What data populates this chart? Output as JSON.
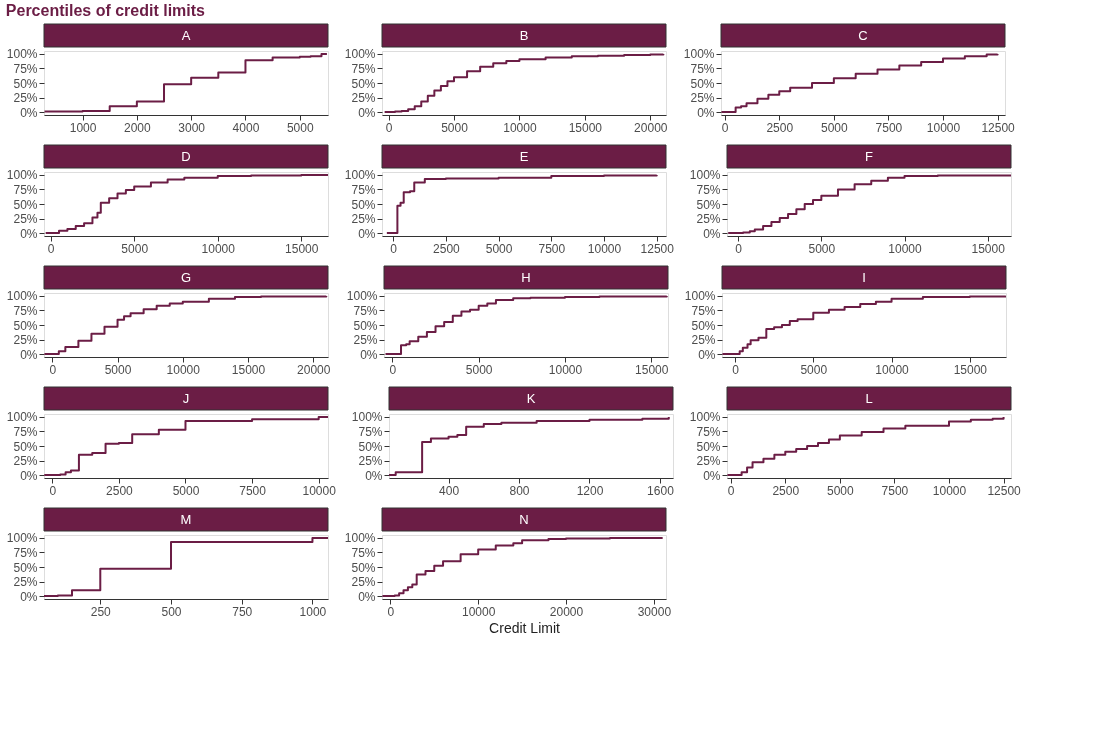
{
  "chart_data": [
    {
      "type": "step",
      "title": "A",
      "annotations": [
        "Percentiles of credit limits"
      ],
      "x": [
        300,
        1000,
        1500,
        2000,
        2500,
        3000,
        3500,
        4000,
        4500,
        5000,
        5200,
        5400,
        5500
      ],
      "series": [
        {
          "color": "#6b1d45",
          "values": [
            1,
            2,
            10,
            18,
            48,
            59,
            68,
            89,
            94,
            95,
            96,
            100,
            100
          ]
        }
      ],
      "xlim": [
        290,
        5520
      ],
      "xticks": [
        1000,
        2000,
        3000,
        4000,
        5000
      ],
      "ylim": [
        -5,
        105
      ],
      "yticks": [
        {
          "value": 0,
          "label": "0%"
        },
        {
          "value": 25,
          "label": "25%"
        },
        {
          "value": 50,
          "label": "50%"
        },
        {
          "value": 75,
          "label": "75%"
        },
        {
          "value": 100,
          "label": "100%"
        }
      ]
    },
    {
      "type": "step",
      "title": "B",
      "x": [
        -300,
        500,
        1000,
        1500,
        2000,
        2500,
        3000,
        3500,
        4000,
        4500,
        5000,
        6000,
        7000,
        8000,
        9000,
        10000,
        12000,
        14000,
        16000,
        18000,
        20000,
        21000
      ],
      "series": [
        {
          "color": "#6b1d45",
          "values": [
            0,
            1,
            2,
            5,
            10,
            18,
            28,
            37,
            45,
            53,
            60,
            70,
            78,
            84,
            88,
            91,
            94,
            96,
            97,
            98,
            99,
            100
          ]
        }
      ],
      "xlim": [
        -500,
        21200
      ],
      "xticks": [
        0,
        5000,
        10000,
        15000,
        20000
      ],
      "ylim": [
        -5,
        105
      ],
      "yticks": [
        {
          "value": 0,
          "label": "0%"
        },
        {
          "value": 25,
          "label": "25%"
        },
        {
          "value": 50,
          "label": "50%"
        },
        {
          "value": 75,
          "label": "75%"
        },
        {
          "value": 100,
          "label": "100%"
        }
      ]
    },
    {
      "type": "step",
      "title": "C",
      "x": [
        -150,
        500,
        750,
        1000,
        1500,
        2000,
        2500,
        3000,
        4000,
        5000,
        6000,
        7000,
        8000,
        9000,
        10000,
        11000,
        12000,
        12500
      ],
      "series": [
        {
          "color": "#6b1d45",
          "values": [
            0,
            8,
            10,
            15,
            23,
            30,
            36,
            42,
            50,
            58,
            66,
            73,
            80,
            86,
            92,
            96,
            99,
            100
          ]
        }
      ],
      "xlim": [
        -170,
        12840
      ],
      "xticks": [
        0,
        2500,
        5000,
        7500,
        10000,
        12500
      ],
      "ylim": [
        -5,
        105
      ],
      "yticks": [
        {
          "value": 0,
          "label": "0%"
        },
        {
          "value": 25,
          "label": "25%"
        },
        {
          "value": 50,
          "label": "50%"
        },
        {
          "value": 75,
          "label": "75%"
        },
        {
          "value": 100,
          "label": "100%"
        }
      ]
    },
    {
      "type": "step",
      "title": "D",
      "x": [
        -300,
        500,
        1000,
        1500,
        2000,
        2500,
        2800,
        3000,
        3500,
        4000,
        4500,
        5000,
        6000,
        7000,
        8000,
        10000,
        12000,
        15000,
        16600
      ],
      "series": [
        {
          "color": "#6b1d45",
          "values": [
            0,
            4,
            7,
            12,
            17,
            27,
            35,
            52,
            60,
            68,
            74,
            80,
            87,
            92,
            95,
            98,
            99,
            100,
            100
          ]
        }
      ],
      "xlim": [
        -400,
        16600
      ],
      "xticks": [
        0,
        5000,
        10000,
        15000
      ],
      "ylim": [
        -5,
        105
      ],
      "yticks": [
        {
          "value": 0,
          "label": "0%"
        },
        {
          "value": 25,
          "label": "25%"
        },
        {
          "value": 50,
          "label": "50%"
        },
        {
          "value": 75,
          "label": "75%"
        },
        {
          "value": 100,
          "label": "100%"
        }
      ]
    },
    {
      "type": "step",
      "title": "E",
      "x": [
        -300,
        200,
        350,
        500,
        800,
        1000,
        1500,
        2500,
        5000,
        7500,
        10000,
        12500
      ],
      "series": [
        {
          "color": "#6b1d45",
          "values": [
            0,
            47,
            52,
            70,
            72,
            87,
            93,
            94,
            95,
            98,
            99,
            100
          ]
        }
      ],
      "xlim": [
        -530,
        12940
      ],
      "xticks": [
        0,
        2500,
        5000,
        7500,
        10000,
        12500
      ],
      "ylim": [
        -5,
        105
      ],
      "yticks": [
        {
          "value": 0,
          "label": "0%"
        },
        {
          "value": 25,
          "label": "25%"
        },
        {
          "value": 50,
          "label": "50%"
        },
        {
          "value": 75,
          "label": "75%"
        },
        {
          "value": 100,
          "label": "100%"
        }
      ]
    },
    {
      "type": "step",
      "title": "F",
      "x": [
        -600,
        300,
        700,
        1000,
        1500,
        2000,
        2500,
        3000,
        3500,
        4000,
        4500,
        5000,
        6000,
        7000,
        8000,
        9000,
        10000,
        12000,
        16400
      ],
      "series": [
        {
          "color": "#6b1d45",
          "values": [
            0,
            1,
            3,
            6,
            12,
            19,
            26,
            33,
            41,
            50,
            57,
            64,
            75,
            84,
            90,
            95,
            98,
            99,
            100
          ]
        }
      ],
      "xlim": [
        -670,
        16400
      ],
      "xticks": [
        0,
        5000,
        10000,
        15000
      ],
      "ylim": [
        -5,
        105
      ],
      "yticks": [
        {
          "value": 0,
          "label": "0%"
        },
        {
          "value": 25,
          "label": "25%"
        },
        {
          "value": 50,
          "label": "50%"
        },
        {
          "value": 75,
          "label": "75%"
        },
        {
          "value": 100,
          "label": "100%"
        }
      ]
    },
    {
      "type": "step",
      "title": "G",
      "x": [
        -600,
        500,
        1000,
        2000,
        3000,
        4000,
        5000,
        5500,
        6000,
        7000,
        8000,
        9000,
        10000,
        12000,
        14000,
        16000,
        21000
      ],
      "series": [
        {
          "color": "#6b1d45",
          "values": [
            0,
            5,
            12,
            23,
            35,
            47,
            59,
            65,
            70,
            77,
            83,
            87,
            90,
            95,
            98,
            99,
            100
          ]
        }
      ],
      "xlim": [
        -636,
        21130
      ],
      "xticks": [
        0,
        5000,
        10000,
        15000,
        20000
      ],
      "ylim": [
        -5,
        105
      ],
      "yticks": [
        {
          "value": 0,
          "label": "0%"
        },
        {
          "value": 25,
          "label": "25%"
        },
        {
          "value": 50,
          "label": "50%"
        },
        {
          "value": 75,
          "label": "75%"
        },
        {
          "value": 100,
          "label": "100%"
        }
      ]
    },
    {
      "type": "step",
      "title": "H",
      "x": [
        -400,
        500,
        800,
        1000,
        1500,
        2000,
        2500,
        3000,
        3500,
        4000,
        4500,
        5000,
        5500,
        6000,
        7000,
        8000,
        10000,
        12000,
        15900
      ],
      "series": [
        {
          "color": "#6b1d45",
          "values": [
            0,
            15,
            17,
            22,
            30,
            38,
            48,
            55,
            66,
            73,
            76,
            83,
            87,
            93,
            96,
            97,
            98,
            99,
            100
          ]
        }
      ],
      "xlim": [
        -486,
        15970
      ],
      "xticks": [
        0,
        5000,
        10000,
        15000
      ],
      "ylim": [
        -5,
        105
      ],
      "yticks": [
        {
          "value": 0,
          "label": "0%"
        },
        {
          "value": 25,
          "label": "25%"
        },
        {
          "value": 50,
          "label": "50%"
        },
        {
          "value": 75,
          "label": "75%"
        },
        {
          "value": 100,
          "label": "100%"
        }
      ]
    },
    {
      "type": "step",
      "title": "I",
      "x": [
        -800,
        300,
        500,
        800,
        1000,
        1500,
        2000,
        2500,
        3000,
        3500,
        4000,
        5000,
        6000,
        7000,
        8000,
        9000,
        10000,
        12000,
        15000,
        17300
      ],
      "series": [
        {
          "color": "#6b1d45",
          "values": [
            0,
            5,
            11,
            17,
            24,
            28,
            43,
            46,
            50,
            57,
            60,
            71,
            76,
            81,
            86,
            90,
            95,
            98,
            99,
            100
          ]
        }
      ],
      "xlim": [
        -830,
        17310
      ],
      "xticks": [
        0,
        5000,
        10000,
        15000
      ],
      "ylim": [
        -5,
        105
      ],
      "yticks": [
        {
          "value": 0,
          "label": "0%"
        },
        {
          "value": 25,
          "label": "25%"
        },
        {
          "value": 50,
          "label": "50%"
        },
        {
          "value": 75,
          "label": "75%"
        },
        {
          "value": 100,
          "label": "100%"
        }
      ]
    },
    {
      "type": "step",
      "title": "J",
      "x": [
        -300,
        300,
        500,
        700,
        1000,
        1500,
        2000,
        2500,
        3000,
        4000,
        5000,
        7500,
        10000,
        10350
      ],
      "series": [
        {
          "color": "#6b1d45",
          "values": [
            0,
            1,
            5,
            8,
            35,
            38,
            54,
            55,
            70,
            78,
            93,
            96,
            100,
            100
          ]
        }
      ],
      "xlim": [
        -311,
        10350
      ],
      "xticks": [
        0,
        2500,
        5000,
        7500,
        10000
      ],
      "ylim": [
        -5,
        105
      ],
      "yticks": [
        {
          "value": 0,
          "label": "0%"
        },
        {
          "value": 25,
          "label": "25%"
        },
        {
          "value": 50,
          "label": "50%"
        },
        {
          "value": 75,
          "label": "75%"
        },
        {
          "value": 100,
          "label": "100%"
        }
      ]
    },
    {
      "type": "step",
      "title": "K",
      "x": [
        62,
        100,
        250,
        300,
        400,
        450,
        500,
        600,
        700,
        900,
        1200,
        1500,
        1650
      ],
      "series": [
        {
          "color": "#6b1d45",
          "values": [
            0,
            5,
            57,
            63,
            66,
            69,
            83,
            88,
            90,
            93,
            95,
            97,
            100
          ]
        }
      ],
      "xlim": [
        62,
        1674
      ],
      "xticks": [
        400,
        800,
        1200,
        1600
      ],
      "ylim": [
        -5,
        105
      ],
      "yticks": [
        {
          "value": 0,
          "label": "0%"
        },
        {
          "value": 25,
          "label": "25%"
        },
        {
          "value": 50,
          "label": "50%"
        },
        {
          "value": 75,
          "label": "75%"
        },
        {
          "value": 100,
          "label": "100%"
        }
      ]
    },
    {
      "type": "step",
      "title": "L",
      "x": [
        -150,
        500,
        750,
        1000,
        1500,
        2000,
        2500,
        3000,
        3500,
        4000,
        4500,
        5000,
        6000,
        7000,
        8000,
        10000,
        11000,
        12000,
        12500
      ],
      "series": [
        {
          "color": "#6b1d45",
          "values": [
            0,
            5,
            13,
            22,
            28,
            35,
            40,
            45,
            50,
            55,
            61,
            68,
            74,
            80,
            85,
            92,
            95,
            97,
            100
          ]
        }
      ],
      "xlim": [
        -170,
        12840
      ],
      "xticks": [
        0,
        2500,
        5000,
        7500,
        10000,
        12500
      ],
      "ylim": [
        -5,
        105
      ],
      "yticks": [
        {
          "value": 0,
          "label": "0%"
        },
        {
          "value": 25,
          "label": "25%"
        },
        {
          "value": 50,
          "label": "50%"
        },
        {
          "value": 75,
          "label": "75%"
        },
        {
          "value": 100,
          "label": "100%"
        }
      ]
    },
    {
      "type": "step",
      "title": "M",
      "x": [
        51,
        100,
        150,
        250,
        500,
        1000,
        1055
      ],
      "series": [
        {
          "color": "#6b1d45",
          "values": [
            0,
            1,
            10,
            47,
            93,
            100,
            100
          ]
        }
      ],
      "xlim": [
        51,
        1055
      ],
      "xticks": [
        250,
        500,
        750,
        1000
      ],
      "ylim": [
        -5,
        105
      ],
      "yticks": [
        {
          "value": 0,
          "label": "0%"
        },
        {
          "value": 25,
          "label": "25%"
        },
        {
          "value": 50,
          "label": "50%"
        },
        {
          "value": 75,
          "label": "75%"
        },
        {
          "value": 100,
          "label": "100%"
        }
      ]
    },
    {
      "type": "step",
      "title": "N",
      "xlabel": "Credit Limit",
      "x": [
        -900,
        500,
        1000,
        1500,
        2000,
        2500,
        3000,
        4000,
        5000,
        6000,
        8000,
        10000,
        12000,
        14000,
        15000,
        18000,
        20000,
        25000,
        31000
      ],
      "series": [
        {
          "color": "#6b1d45",
          "values": [
            0,
            1,
            5,
            10,
            15,
            20,
            37,
            43,
            52,
            60,
            72,
            80,
            87,
            91,
            96,
            98,
            99,
            100,
            100
          ]
        }
      ],
      "xlim": [
        -950,
        31380
      ],
      "xticks": [
        0,
        10000,
        20000,
        30000
      ],
      "ylim": [
        -5,
        105
      ],
      "yticks": [
        {
          "value": 0,
          "label": "0%"
        },
        {
          "value": 25,
          "label": "25%"
        },
        {
          "value": 50,
          "label": "50%"
        },
        {
          "value": 75,
          "label": "75%"
        },
        {
          "value": 100,
          "label": "100%"
        }
      ]
    }
  ]
}
